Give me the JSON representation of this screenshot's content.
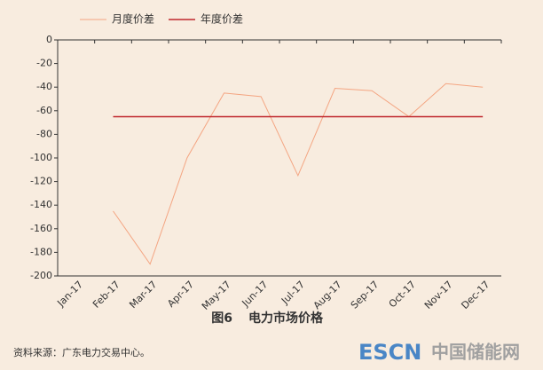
{
  "chart_data": {
    "type": "line",
    "categories": [
      "Jan-17",
      "Feb-17",
      "Mar-17",
      "Apr-17",
      "May-17",
      "Jun-17",
      "Jul-17",
      "Aug-17",
      "Sep-17",
      "Oct-17",
      "Nov-17",
      "Dec-17"
    ],
    "series": [
      {
        "name": "月度价差",
        "color": "#f4a582",
        "values": [
          null,
          -145,
          -190,
          -100,
          -45,
          -48,
          -115,
          -41,
          -43,
          -65,
          -37,
          -40
        ]
      },
      {
        "name": "年度价差",
        "color": "#c0272d",
        "values": [
          null,
          -65,
          -65,
          -65,
          -65,
          -65,
          -65,
          -65,
          -65,
          -65,
          -65,
          -65
        ]
      }
    ],
    "ylim": [
      -200,
      0
    ],
    "yticks": [
      0,
      -20,
      -40,
      -60,
      -80,
      -100,
      -120,
      -140,
      -160,
      -180,
      -200
    ],
    "grid": false,
    "legend": "top-left"
  },
  "caption": {
    "label": "图6",
    "text": "电力市场价格"
  },
  "source": "资料来源：广东电力交易中心。",
  "watermark": {
    "brand": "ESCN",
    "name": "中国储能网"
  }
}
